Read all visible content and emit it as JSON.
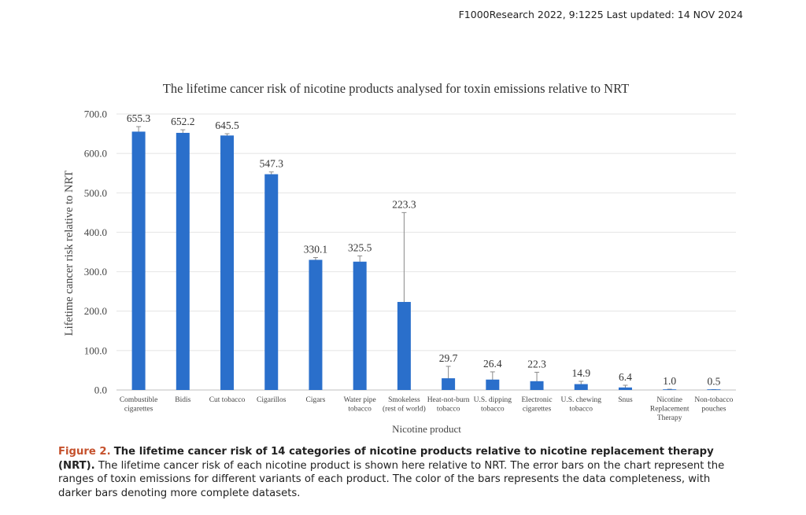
{
  "header": {
    "citation": "F1000Research 2022, 9:1225 Last updated: 14 NOV 2024"
  },
  "chart_data": {
    "type": "bar",
    "title": "The lifetime cancer risk of nicotine products analysed for toxin emissions relative to NRT",
    "xlabel": "Nicotine product",
    "ylabel": "Lifetime cancer risk relative to NRT",
    "ylim": [
      0,
      700
    ],
    "yticks": [
      "0.0",
      "100.0",
      "200.0",
      "300.0",
      "400.0",
      "500.0",
      "600.0",
      "700.0"
    ],
    "categories": [
      [
        "Combustible",
        "cigarettes"
      ],
      [
        "Bidis"
      ],
      [
        "Cut tobacco"
      ],
      [
        "Cigarillos"
      ],
      [
        "Cigars"
      ],
      [
        "Water pipe",
        "tobacco"
      ],
      [
        "Smokeless",
        "(rest of world)"
      ],
      [
        "Heat-not-burn",
        "tobacco"
      ],
      [
        "U.S. dipping",
        "tobacco"
      ],
      [
        "Electronic",
        "cigarettes"
      ],
      [
        "U.S. chewing",
        "tobacco"
      ],
      [
        "Snus"
      ],
      [
        "Nicotine",
        "Replacement",
        "Therapy"
      ],
      [
        "Non-tobacco",
        "pouches"
      ]
    ],
    "values": [
      655.3,
      652.2,
      645.5,
      547.3,
      330.1,
      325.5,
      223.3,
      29.7,
      26.4,
      22.3,
      14.9,
      6.4,
      1.0,
      0.5
    ],
    "labels": [
      "655.3",
      "652.2",
      "645.5",
      "547.3",
      "330.1",
      "325.5",
      "223.3",
      "29.7",
      "26.4",
      "22.3",
      "14.9",
      "6.4",
      "1.0",
      "0.5"
    ],
    "error_low": [
      642,
      645,
      641,
      540,
      325,
      312,
      0,
      5,
      8,
      3,
      8,
      2,
      0,
      0
    ],
    "error_high": [
      668,
      660,
      650,
      553,
      336,
      340,
      450,
      60,
      46,
      45,
      22,
      12,
      2,
      1
    ],
    "bar_color": "#2a6fcb"
  },
  "caption": {
    "figure_label": "Figure 2.",
    "title": "The lifetime cancer risk of 14 categories of nicotine products relative to nicotine replacement therapy (NRT).",
    "body": "The lifetime cancer risk of each nicotine product is shown here relative to NRT. The error bars on the chart represent the ranges of toxin emissions for different variants of each product. The color of the bars represents the data completeness, with darker bars denoting more complete datasets."
  }
}
